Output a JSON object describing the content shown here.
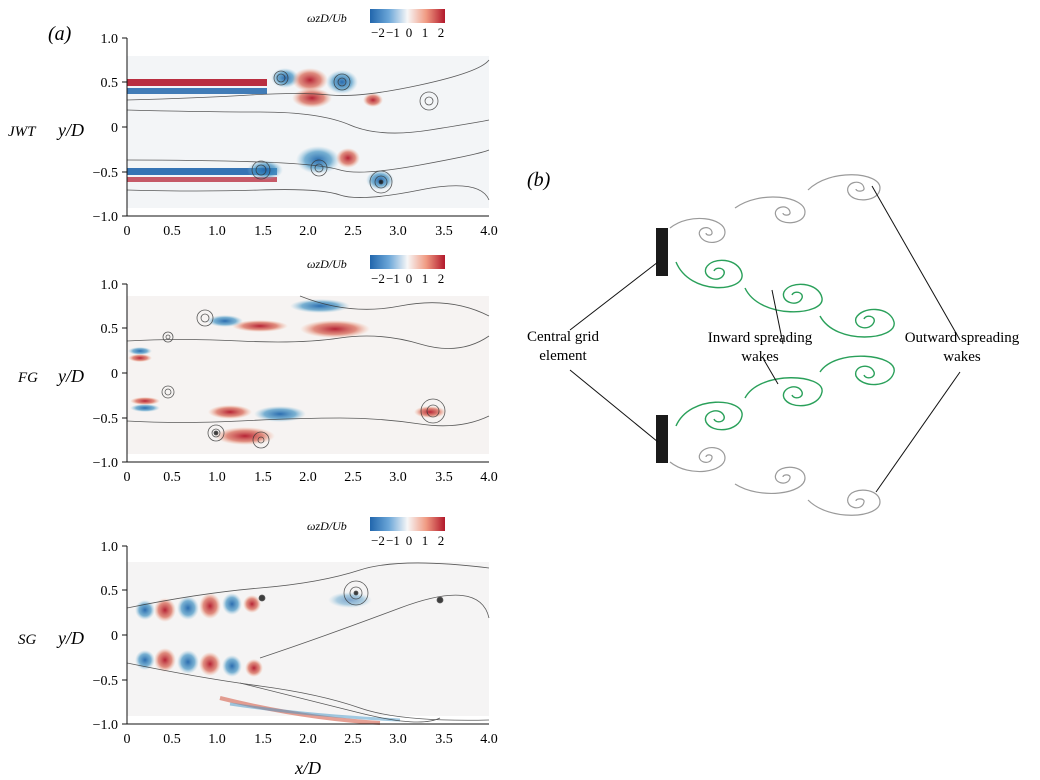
{
  "panel_labels": {
    "a": "(a)",
    "b": "(b)"
  },
  "panel_a": {
    "ylabel": "y/D",
    "xlabel": "x/D",
    "y_ticks": [
      "1.0",
      "0.5",
      "0",
      "−0.5",
      "−1.0"
    ],
    "x_ticks": [
      "0",
      "0.5",
      "1.0",
      "1.5",
      "2.0",
      "2.5",
      "3.0",
      "3.5",
      "4.0"
    ],
    "colorbar_label": "ωzD/Ub",
    "colorbar_ticks": [
      "−2",
      "−1",
      "0",
      "1",
      "2"
    ],
    "colorbar_colors": [
      "#2166ac",
      "#6ba6d8",
      "#f7f7f7",
      "#f09a82",
      "#b2182b"
    ],
    "subplots": [
      {
        "case_label": "JWT"
      },
      {
        "case_label": "FG"
      },
      {
        "case_label": "SG"
      }
    ]
  },
  "panel_b": {
    "labels": {
      "central": [
        "Central grid",
        "element"
      ],
      "inward": [
        "Inward spreading",
        "wakes"
      ],
      "outward": [
        "Outward spreading",
        "wakes"
      ]
    },
    "colors": {
      "inward": "#2aa05a",
      "outward": "#9a9a9a",
      "element": "#1a1a1a"
    }
  }
}
